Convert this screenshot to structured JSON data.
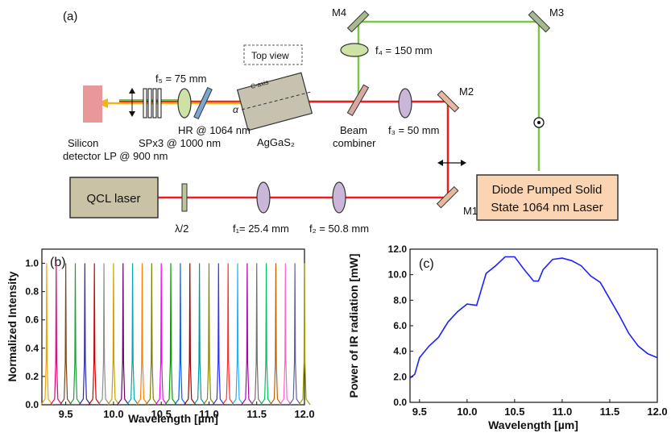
{
  "panel_a": {
    "label": "(a)",
    "top_view": "Top view",
    "qcl": "QCL laser",
    "dpss_line1": "Diode Pumped Solid",
    "dpss_line2": "State 1064 nm Laser",
    "M1": "M1",
    "M2": "M2",
    "M3": "M3",
    "M4": "M4",
    "f1": "f₁= 25.4 mm",
    "f2": "f₂ = 50.8 mm",
    "f3": "f₃ = 50 mm",
    "f4": "f₄ = 150 mm",
    "f5": "f₅ = 75 mm",
    "half_wave": "λ/2",
    "beam_combiner_1": "Beam",
    "beam_combiner_2": "combiner",
    "crystal": "AgGaS₂",
    "c_axis": "C-axis",
    "alpha": "α",
    "hr": "HR @ 1064 nm",
    "sp": "SPx3 @ 1000 nm",
    "lp": "LP @ 900 nm",
    "silicon_1": "Silicon",
    "silicon_2": "detector",
    "colors": {
      "red": "#ee1c1c",
      "green": "#7ec34a",
      "qcl": "#c9c2a4",
      "dpss": "#fbd5b3",
      "detector": "#e89898"
    }
  },
  "chart_data": [
    {
      "type": "line",
      "panel": "(b)",
      "xlabel": "Wavelength [µm]",
      "ylabel": "Normalized Intensity",
      "xlim": [
        9.25,
        12.0
      ],
      "ylim": [
        0,
        1.1
      ],
      "xticks": [
        "9.5",
        "10.0",
        "10.5",
        "11.0",
        "11.5",
        "12.0"
      ],
      "yticks": [
        "0.0",
        "0.2",
        "0.4",
        "0.6",
        "0.8",
        "1.0"
      ],
      "peaks": [
        9.3,
        9.4,
        9.5,
        9.6,
        9.7,
        9.8,
        9.9,
        10.0,
        10.1,
        10.2,
        10.3,
        10.4,
        10.5,
        10.6,
        10.7,
        10.8,
        10.9,
        11.0,
        11.1,
        11.2,
        11.3,
        11.4,
        11.5,
        11.6,
        11.7,
        11.8,
        11.9,
        12.0
      ],
      "peak_value": 1.0,
      "colors": [
        "#f2a300",
        "#e6007e",
        "#7a4a1a",
        "#1f9e3a",
        "#2a2aa8",
        "#d40000",
        "#8e8e8e",
        "#c7a200",
        "#6a006a",
        "#00a9a9",
        "#ff7f00",
        "#7f7f00",
        "#ff00ff",
        "#00a000",
        "#0060ff",
        "#a00000",
        "#009999",
        "#888800",
        "#3030ff",
        "#ff3030",
        "#20b0ff",
        "#b000b0",
        "#707070",
        "#00c060",
        "#c06000",
        "#ff66cc",
        "#6060a0",
        "#a0a000"
      ]
    },
    {
      "type": "line",
      "panel": "(c)",
      "xlabel": "Wavelength [µm]",
      "ylabel": "Power of IR radiation [mW]",
      "xlim": [
        9.4,
        12.0
      ],
      "ylim": [
        0,
        12.0
      ],
      "xticks": [
        "9.5",
        "10.0",
        "10.5",
        "11.0",
        "11.5",
        "12.0"
      ],
      "yticks": [
        "0.0",
        "2.0",
        "4.0",
        "6.0",
        "8.0",
        "10.0",
        "12.0"
      ],
      "color": "#2020ff",
      "x": [
        9.4,
        9.45,
        9.5,
        9.6,
        9.7,
        9.8,
        9.9,
        10.0,
        10.1,
        10.2,
        10.3,
        10.4,
        10.5,
        10.6,
        10.7,
        10.75,
        10.8,
        10.9,
        11.0,
        11.1,
        11.2,
        11.3,
        11.4,
        11.5,
        11.6,
        11.7,
        11.8,
        11.9,
        12.0
      ],
      "y": [
        1.9,
        2.2,
        3.5,
        4.4,
        5.1,
        6.3,
        7.1,
        7.7,
        7.6,
        10.1,
        10.7,
        11.4,
        11.4,
        10.4,
        9.5,
        9.5,
        10.4,
        11.2,
        11.3,
        11.1,
        10.7,
        9.9,
        9.4,
        8.1,
        6.8,
        5.4,
        4.4,
        3.8,
        3.5
      ]
    }
  ]
}
